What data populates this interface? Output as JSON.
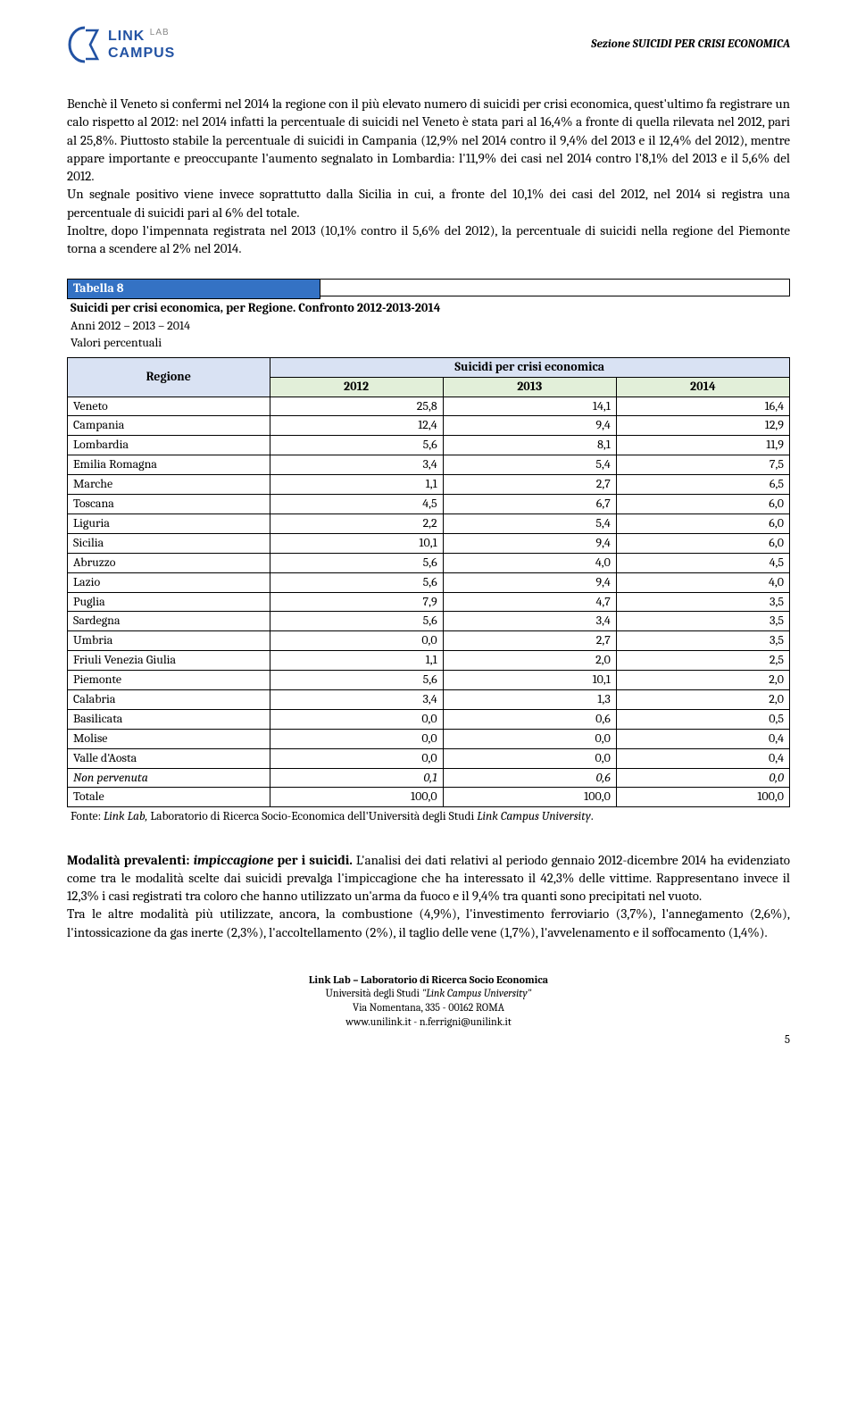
{
  "header": {
    "logo_text_top": "LINK",
    "logo_text_bottom": "CAMPUS",
    "logo_text_sub": "LAB",
    "section_label": "Sezione SUICIDI PER CRISI ECONOMICA"
  },
  "body1": "Benchè il Veneto si confermi nel 2014 la regione con il più elevato numero di suicidi per crisi economica, quest'ultimo fa registrare un calo rispetto al 2012: nel 2014 infatti la percentuale di suicidi nel Veneto è stata pari al 16,4% a fronte di quella rilevata nel 2012, pari al 25,8%. Piuttosto stabile la percentuale di suicidi in Campania (12,9% nel 2014 contro il 9,4% del 2013 e il 12,4% del 2012), mentre appare importante e preoccupante l'aumento segnalato in Lombardia: l'11,9% dei casi nel 2014 contro l'8,1% del 2013 e il 5,6% del 2012.",
  "body1b": "Un segnale positivo viene invece soprattutto dalla Sicilia in cui, a fronte del 10,1% dei casi del 2012, nel 2014 si registra una percentuale di suicidi pari al 6% del totale.",
  "body1c": "Inoltre, dopo l'impennata registrata nel 2013 (10,1% contro il 5,6% del 2012), la percentuale di suicidi nella regione del Piemonte torna a scendere al 2% nel 2014.",
  "table": {
    "title": "Tabella 8",
    "subtitle": "Suicidi per crisi economica, per Regione. Confronto 2012-2013-2014",
    "meta1": "Anni 2012 – 2013 – 2014",
    "meta2": "Valori percentuali",
    "region_head": "Regione",
    "main_head": "Suicidi per crisi economica",
    "years": [
      "2012",
      "2013",
      "2014"
    ],
    "rows": [
      {
        "region": "Veneto",
        "v": [
          "25,8",
          "14,1",
          "16,4"
        ]
      },
      {
        "region": "Campania",
        "v": [
          "12,4",
          "9,4",
          "12,9"
        ]
      },
      {
        "region": "Lombardia",
        "v": [
          "5,6",
          "8,1",
          "11,9"
        ]
      },
      {
        "region": "Emilia Romagna",
        "v": [
          "3,4",
          "5,4",
          "7,5"
        ]
      },
      {
        "region": "Marche",
        "v": [
          "1,1",
          "2,7",
          "6,5"
        ]
      },
      {
        "region": "Toscana",
        "v": [
          "4,5",
          "6,7",
          "6,0"
        ]
      },
      {
        "region": "Liguria",
        "v": [
          "2,2",
          "5,4",
          "6,0"
        ]
      },
      {
        "region": "Sicilia",
        "v": [
          "10,1",
          "9,4",
          "6,0"
        ]
      },
      {
        "region": "Abruzzo",
        "v": [
          "5,6",
          "4,0",
          "4,5"
        ]
      },
      {
        "region": "Lazio",
        "v": [
          "5,6",
          "9,4",
          "4,0"
        ]
      },
      {
        "region": "Puglia",
        "v": [
          "7,9",
          "4,7",
          "3,5"
        ]
      },
      {
        "region": "Sardegna",
        "v": [
          "5,6",
          "3,4",
          "3,5"
        ]
      },
      {
        "region": "Umbria",
        "v": [
          "0,0",
          "2,7",
          "3,5"
        ]
      },
      {
        "region": "Friuli Venezia Giulia",
        "v": [
          "1,1",
          "2,0",
          "2,5"
        ]
      },
      {
        "region": "Piemonte",
        "v": [
          "5,6",
          "10,1",
          "2,0"
        ]
      },
      {
        "region": "Calabria",
        "v": [
          "3,4",
          "1,3",
          "2,0"
        ]
      },
      {
        "region": "Basilicata",
        "v": [
          "0,0",
          "0,6",
          "0,5"
        ]
      },
      {
        "region": "Molise",
        "v": [
          "0,0",
          "0,0",
          "0,4"
        ]
      },
      {
        "region": "Valle d'Aosta",
        "v": [
          "0,0",
          "0,0",
          "0,4"
        ]
      },
      {
        "region": "Non pervenuta",
        "v": [
          "0,1",
          "0,6",
          "0,0"
        ],
        "italic": true
      },
      {
        "region": "Totale",
        "v": [
          "100,0",
          "100,0",
          "100,0"
        ]
      }
    ],
    "source_prefix": "Fonte: ",
    "source_italic": "Link Lab,",
    "source_mid": " Laboratorio di Ricerca Socio-Economica dell'Università degli Studi ",
    "source_italic2": "Link Campus University",
    "source_suffix": "."
  },
  "body2_lead_bold": "Modalità prevalenti: ",
  "body2_lead_bi": "impiccagione",
  "body2_lead_bold2": " per i suicidi.",
  "body2": " L'analisi dei dati relativi al periodo gennaio 2012-dicembre 2014 ha evidenziato come tra le modalità scelte dai suicidi prevalga l'impiccagione che ha interessato il 42,3% delle vittime. Rappresentano invece il 12,3% i casi registrati tra coloro che hanno utilizzato un'arma da fuoco e il 9,4% tra quanti sono precipitati nel vuoto.",
  "body2b": "Tra le altre modalità più utilizzate, ancora, la combustione (4,9%), l'investimento ferroviario (3,7%), l'annegamento (2,6%), l'intossicazione da gas inerte (2,3%), l'accoltellamento (2%), il taglio delle vene (1,7%), l'avvelenamento e il soffocamento (1,4%).",
  "footer": {
    "lab": "Link Lab – Laboratorio di Ricerca Socio Economica",
    "uni_pre": "Università degli Studi ",
    "uni_q": "\"Link Campus University\"",
    "addr": "Via Nomentana, 335 - 00162 ROMA",
    "web": "www.unilink.it - n.ferrigni@unilink.it",
    "page": "5"
  },
  "colors": {
    "table_title_bg": "#3472c4",
    "head_bg1": "#d9e2f3",
    "head_bg2": "#e2efd9"
  }
}
